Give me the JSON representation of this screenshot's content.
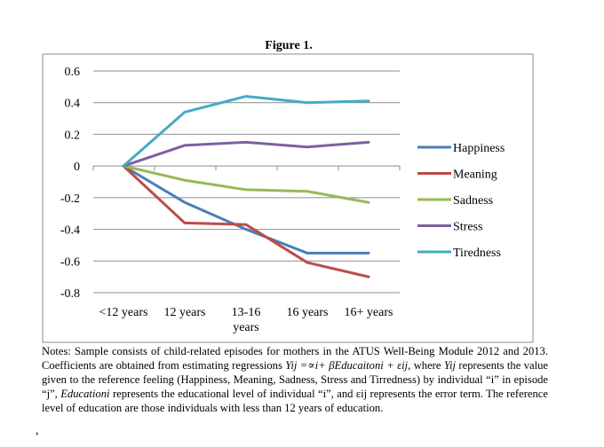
{
  "chart_data": {
    "type": "line",
    "title": "Figure 1.",
    "categories": [
      "<12 years",
      "12 years",
      "13-16 years",
      "16 years",
      "16+ years"
    ],
    "category_lines": [
      [
        "<12 years"
      ],
      [
        "12 years"
      ],
      [
        "13-16",
        "years"
      ],
      [
        "16 years"
      ],
      [
        "16+ years"
      ]
    ],
    "ylim": [
      -0.8,
      0.6
    ],
    "yticks": [
      0.6,
      0.4,
      0.2,
      0,
      -0.2,
      -0.4,
      -0.6,
      -0.8
    ],
    "ytick_labels": [
      "0.6",
      "0.4",
      "0.2",
      "0",
      "-0.2",
      "-0.4",
      "-0.6",
      "-0.8"
    ],
    "legend_position": "right",
    "grid": "horizontal",
    "series": [
      {
        "name": "Happiness",
        "color": "#4a7ebb",
        "values": [
          0,
          -0.23,
          -0.4,
          -0.55,
          -0.55
        ]
      },
      {
        "name": "Meaning",
        "color": "#be4b48",
        "values": [
          0,
          -0.36,
          -0.37,
          -0.61,
          -0.7
        ]
      },
      {
        "name": "Sadness",
        "color": "#98b954",
        "values": [
          0,
          -0.09,
          -0.15,
          -0.16,
          -0.23
        ]
      },
      {
        "name": "Stress",
        "color": "#7d60a0",
        "values": [
          0,
          0.13,
          0.15,
          0.12,
          0.15
        ]
      },
      {
        "name": "Tiredness",
        "color": "#46aac5",
        "values": [
          0,
          0.34,
          0.44,
          0.4,
          0.41
        ]
      }
    ]
  },
  "notes": {
    "part1": "Notes: Sample consists of child-related episodes for mothers in the ATUS Well-Being Module 2012 and 2013. Coefficients are obtained from estimating regressions ",
    "formula": "Yij =∝i+ βEducaitoni + εij",
    "part2": ", where ",
    "yij": "Yij",
    "part3": " represents the value given to the reference feeling (Happiness, Meaning, Sadness, Stress and Tirredness) by individual “i” in episode “j”, ",
    "education": "Educationi",
    "part4": " represents the educational level of individual “i”, and εij represents the error term. The reference level of education are those individuals with less than 12 years of education."
  },
  "stray_mark": ","
}
